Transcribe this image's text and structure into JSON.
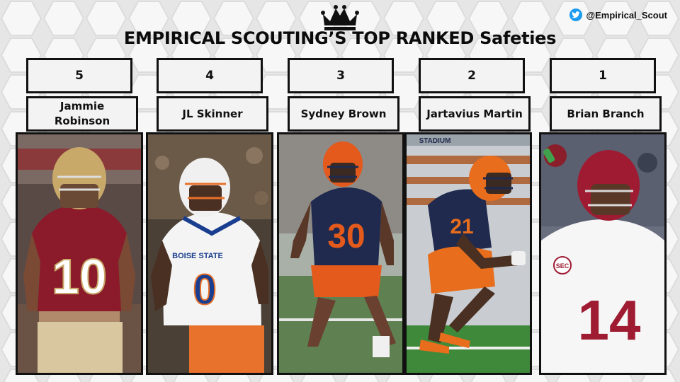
{
  "header": {
    "title": "EMPIRICAL SCOUTING’S TOP RANKED Safeties",
    "twitter_handle": "@Empirical_Scout",
    "logo_icon": "crown-icon",
    "twitter_icon": "twitter-bird-icon"
  },
  "players": [
    {
      "rank": "5",
      "name": "Jammie Robinson",
      "jersey_number": "10",
      "jersey_color": "#8b1a2b",
      "helmet_color": "#c8a96a",
      "accent_color": "#ffffff"
    },
    {
      "rank": "4",
      "name": "JL Skinner",
      "jersey_number": "0",
      "jersey_color": "#f4f4f4",
      "helmet_color": "#f0f0f0",
      "accent_color": "#e8712b",
      "jersey_text": "BOISE STATE"
    },
    {
      "rank": "3",
      "name": "Sydney Brown",
      "jersey_number": "30",
      "jersey_color": "#1f2a4e",
      "helmet_color": "#e35a1c",
      "accent_color": "#e35a1c"
    },
    {
      "rank": "2",
      "name": "Jartavius Martin",
      "jersey_number": "21",
      "jersey_color": "#1f2a4e",
      "helmet_color": "#e86d1c",
      "accent_color": "#e86d1c",
      "stadium_text": "STADIUM"
    },
    {
      "rank": "1",
      "name": "Brian Branch",
      "jersey_number": "14",
      "jersey_color": "#f6f6f6",
      "helmet_color": "#9e1b32",
      "accent_color": "#9e1b32",
      "patch_text": "SEC"
    }
  ]
}
